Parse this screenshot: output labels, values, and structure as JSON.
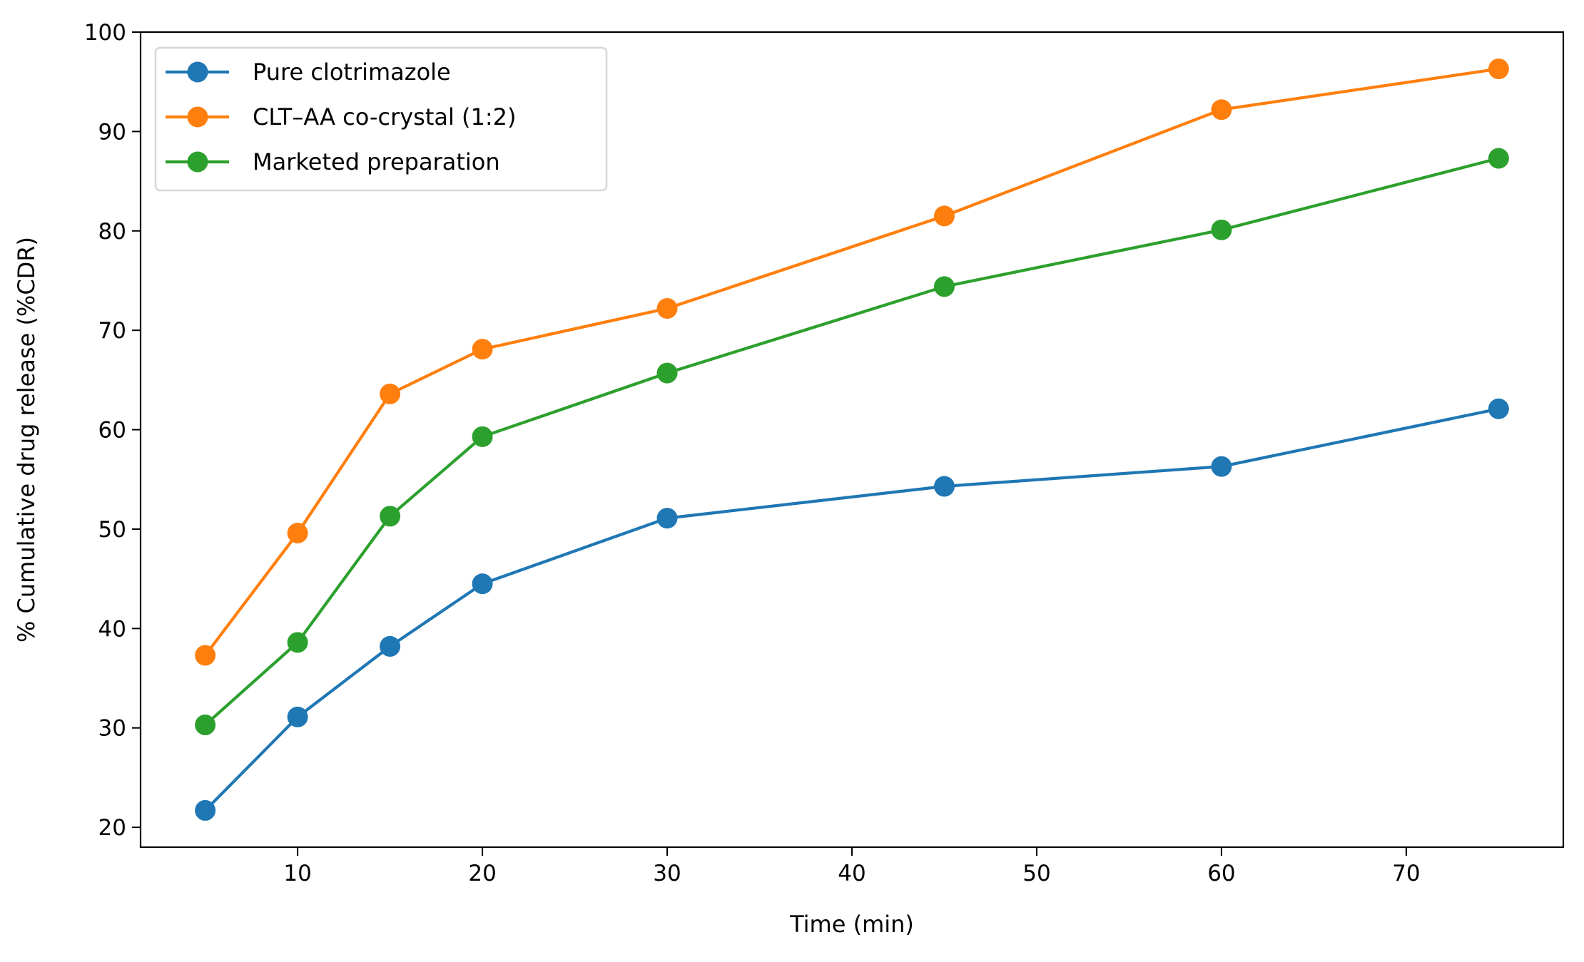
{
  "chart_data": {
    "type": "line",
    "title": "",
    "xlabel": "Time (min)",
    "ylabel": "% Cumulative drug release (%CDR)",
    "x": [
      5,
      10,
      15,
      20,
      30,
      45,
      60,
      75
    ],
    "xlim": [
      1.5,
      78.5
    ],
    "ylim": [
      18,
      100
    ],
    "xticks": [
      10,
      20,
      30,
      40,
      50,
      60,
      70
    ],
    "yticks": [
      20,
      30,
      40,
      50,
      60,
      70,
      80,
      90,
      100
    ],
    "grid": false,
    "legend_position": "top-left",
    "markers": "circle",
    "series": [
      {
        "name": "Pure clotrimazole",
        "color": "#1f77b4",
        "values": [
          21.7,
          31.1,
          38.2,
          44.5,
          51.1,
          54.3,
          56.3,
          62.1
        ]
      },
      {
        "name": "CLT–AA co-crystal (1:2)",
        "color": "#ff7f0e",
        "values": [
          37.3,
          49.6,
          63.6,
          68.1,
          72.2,
          81.5,
          92.2,
          96.3
        ]
      },
      {
        "name": "Marketed preparation",
        "color": "#2ca02c",
        "values": [
          30.3,
          38.6,
          51.3,
          59.3,
          65.7,
          74.4,
          80.1,
          87.3
        ]
      }
    ]
  }
}
